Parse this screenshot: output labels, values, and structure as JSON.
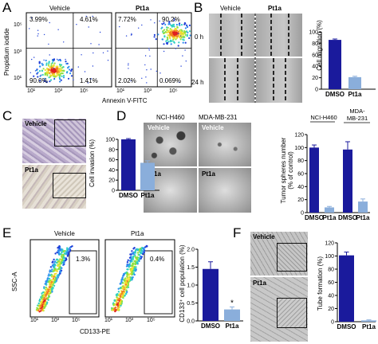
{
  "panels": {
    "A": {
      "letter": "A",
      "groups": [
        "Vehicle",
        "Pt1a"
      ],
      "ylabel": "Propidium iodide",
      "xlabel": "Annexin V-FITC",
      "y_ticks": [
        "10⁵",
        "10³",
        "10¹"
      ],
      "x_ticks": [
        "10¹",
        "10³",
        "10⁵"
      ],
      "quadrants": {
        "vehicle": {
          "ul": "3.99%",
          "ur": "4.61%",
          "ll": "90.0%",
          "lr": "1.41%"
        },
        "pt1a": {
          "ul": "7.72%",
          "ur": "90.2%",
          "ll": "2.02%",
          "lr": "0.069%"
        }
      }
    },
    "B": {
      "letter": "B",
      "groups": [
        "Vehicle",
        "Pt1a"
      ],
      "rows": [
        "0 h",
        "24 h"
      ]
    },
    "C": {
      "letter": "C",
      "rows": [
        "Vehicle",
        "Pt1a"
      ]
    },
    "D": {
      "letter": "D",
      "cell_lines": [
        "NCI-H460",
        "MDA-MB-231"
      ],
      "rows": [
        "Vehicle",
        "Pt1a"
      ],
      "chart_groups": [
        "NCI-H460",
        "MDA-\nMB-231"
      ]
    },
    "E": {
      "letter": "E",
      "groups": [
        "Vehicle",
        "Pt1a"
      ],
      "gate_values": [
        "1.3%",
        "0.4%"
      ],
      "ylabel": "SSC-A",
      "xlabel": "CD133-PE",
      "x_ticks": [
        "10¹",
        "10³",
        "10⁵"
      ]
    },
    "F": {
      "letter": "F",
      "rows": [
        "Vehicle",
        "Pt1a"
      ]
    }
  },
  "colors": {
    "dmso": "#1a1a9c",
    "pt1a": "#8aaedb"
  },
  "chart_data": [
    {
      "panel": "B",
      "type": "bar",
      "categories": [
        "DMSO",
        "Pt1a"
      ],
      "values": [
        86,
        21
      ],
      "errors": [
        1.5,
        1.5
      ],
      "ylabel": "Cell migration (%)",
      "ylim": [
        0,
        100
      ],
      "yticks": [
        0,
        20,
        40,
        60,
        80,
        100
      ]
    },
    {
      "panel": "C",
      "type": "bar",
      "categories": [
        "DMSO",
        "Pt1a"
      ],
      "values": [
        100,
        54
      ],
      "errors": [
        1.5,
        4
      ],
      "ylabel": "Cell invasion (%)",
      "ylim": [
        0,
        100
      ],
      "yticks": [
        0,
        20,
        40,
        60,
        80,
        100
      ]
    },
    {
      "panel": "D",
      "type": "bar",
      "categories": [
        "DMSO",
        "Pt1a",
        "DMSO",
        "Pt1a"
      ],
      "values": [
        100,
        8,
        97,
        17
      ],
      "errors": [
        4,
        1.5,
        12,
        4
      ],
      "ylabel": "Tumor spheres number\n(% of control)",
      "ylim": [
        0,
        120
      ],
      "yticks": [
        0,
        20,
        40,
        60,
        80,
        100,
        120
      ]
    },
    {
      "panel": "E",
      "type": "bar",
      "categories": [
        "DMSO",
        "Pt1a"
      ],
      "values": [
        1.45,
        0.32
      ],
      "errors": [
        0.2,
        0.07
      ],
      "ylabel": "CD133⁺ cell population (%)",
      "ylim": [
        0,
        2.0
      ],
      "yticks": [
        0.0,
        0.5,
        1.0,
        1.5,
        2.0
      ],
      "annotation": "*"
    },
    {
      "panel": "F",
      "type": "bar",
      "categories": [
        "DMSO",
        "Pt1a"
      ],
      "values": [
        101,
        2
      ],
      "errors": [
        5,
        0.8
      ],
      "ylabel": "Tube formation (%)",
      "ylim": [
        0,
        120
      ],
      "yticks": [
        0,
        20,
        40,
        60,
        80,
        100,
        120
      ]
    }
  ]
}
